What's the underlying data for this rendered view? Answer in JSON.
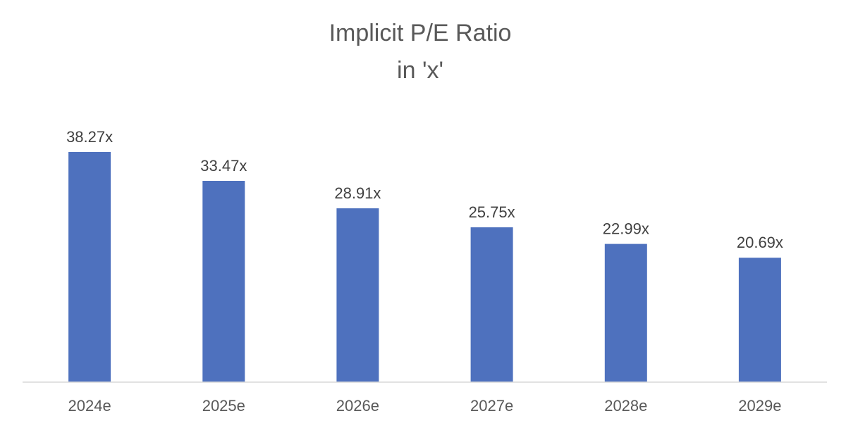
{
  "chart_data": {
    "type": "bar",
    "title": "Implicit P/E Ratio",
    "subtitle": "in 'x'",
    "categories": [
      "2024e",
      "2025e",
      "2026e",
      "2027e",
      "2028e",
      "2029e"
    ],
    "values": [
      38.27,
      33.47,
      28.91,
      25.75,
      22.99,
      20.69
    ],
    "data_labels": [
      "38.27x",
      "33.47x",
      "28.91x",
      "25.75x",
      "22.99x",
      "20.69x"
    ],
    "xlabel": "",
    "ylabel": "",
    "ylim": [
      0,
      45
    ],
    "grid": false,
    "legend": "none",
    "colors": {
      "bar": "#4e71be",
      "axis": "#d9d9d9"
    }
  }
}
